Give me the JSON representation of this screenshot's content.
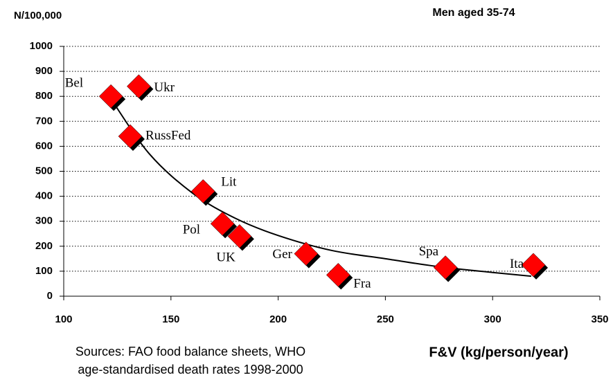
{
  "chart_data": {
    "type": "scatter",
    "title": "Men aged 35-74",
    "y_label": "N/100,000",
    "x_label": "F&V (kg/person/year)",
    "notes": [
      "Sources: FAO food balance sheets, WHO",
      "age-standardised death rates 1998-2000"
    ],
    "labels": [
      "Bel",
      "Ukr",
      "RussFed",
      "Lit",
      "Pol",
      "UK",
      "Ger",
      "Fra",
      "Spa",
      "Ita"
    ],
    "x": [
      122,
      135,
      131,
      165,
      174,
      182,
      213,
      228,
      278,
      319
    ],
    "values": [
      800,
      840,
      640,
      420,
      290,
      240,
      170,
      85,
      115,
      125
    ],
    "color": "#ff0000",
    "trendline": {
      "color": "#000000",
      "x": [
        122,
        140,
        160,
        180,
        200,
        225,
        250,
        275,
        300,
        318
      ],
      "values": [
        790,
        569,
        413,
        312,
        243,
        183,
        150,
        118,
        95,
        80
      ]
    },
    "xlim": [
      100,
      350
    ],
    "xticks": [
      100,
      150,
      200,
      250,
      300,
      350
    ],
    "ylim": [
      0,
      1000
    ],
    "yticks": [
      0,
      100,
      200,
      300,
      400,
      500,
      600,
      700,
      800,
      900,
      1000
    ],
    "grid": true
  }
}
